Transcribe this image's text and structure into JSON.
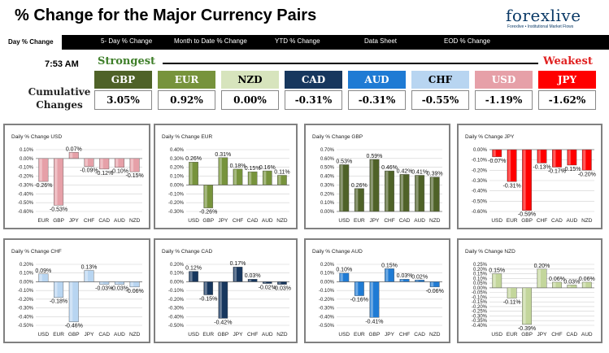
{
  "header": {
    "title": "% Change for the Major Currency Pairs",
    "logo": "forexlive",
    "logo_tagline": "Forexlive • Institutional Market Flows"
  },
  "tabs": [
    {
      "label": "Day % Change",
      "active": true
    },
    {
      "label": "5- Day % Change",
      "active": false
    },
    {
      "label": "Month to Date % Change",
      "active": false
    },
    {
      "label": "YTD % Change",
      "active": false
    },
    {
      "label": "Data Sheet",
      "active": false
    },
    {
      "label": "EOD % Change",
      "active": false
    }
  ],
  "summary": {
    "time": "7:53 AM",
    "strongest_label": "Strongest",
    "weakest_label": "Weakest",
    "cumulative_label_line1": "Cumulative",
    "cumulative_label_line2": "Changes",
    "currencies": [
      {
        "name": "GBP",
        "value": "3.05%",
        "color": "#4f6228",
        "text": "#ffffff"
      },
      {
        "name": "EUR",
        "value": "0.92%",
        "color": "#77933c",
        "text": "#ffffff"
      },
      {
        "name": "NZD",
        "value": "0.00%",
        "color": "#d7e4bd",
        "text": "#000000"
      },
      {
        "name": "CAD",
        "value": "-0.31%",
        "color": "#17375e",
        "text": "#ffffff"
      },
      {
        "name": "AUD",
        "value": "-0.31%",
        "color": "#1f7bd4",
        "text": "#ffffff"
      },
      {
        "name": "CHF",
        "value": "-0.55%",
        "color": "#b8d5f1",
        "text": "#000000"
      },
      {
        "name": "USD",
        "value": "-1.19%",
        "color": "#e6a0a8",
        "text": "#ffffff"
      },
      {
        "name": "JPY",
        "value": "-1.62%",
        "color": "#ff0000",
        "text": "#ffffff"
      }
    ]
  },
  "chart_data": [
    {
      "type": "bar",
      "title": "Daily % Change USD",
      "categories": [
        "EUR",
        "GBP",
        "JPY",
        "CHF",
        "CAD",
        "AUD",
        "NZD"
      ],
      "values": [
        -0.26,
        -0.53,
        0.07,
        -0.09,
        -0.12,
        -0.1,
        -0.15
      ],
      "labels": [
        "-0.26%",
        "-0.53%",
        "0.07%",
        "-0.09%",
        "-0.12%",
        "-0.10%",
        "-0.15%"
      ],
      "ylim": [
        -0.6,
        0.1
      ],
      "ticks": [
        "0.10%",
        "0.00%",
        "-0.10%",
        "-0.20%",
        "-0.30%",
        "-0.40%",
        "-0.50%",
        "-0.60%"
      ],
      "bar_colors": [
        "#e6a0a8",
        "#e6a0a8",
        "#e6a0a8",
        "#e6a0a8",
        "#e6a0a8",
        "#e6a0a8",
        "#e6a0a8"
      ]
    },
    {
      "type": "bar",
      "title": "Daily % Change EUR",
      "categories": [
        "USD",
        "GBP",
        "JPY",
        "CHF",
        "CAD",
        "AUD",
        "NZD"
      ],
      "values": [
        0.26,
        -0.26,
        0.31,
        0.18,
        0.15,
        0.16,
        0.11
      ],
      "labels": [
        "0.26%",
        "-0.26%",
        "0.31%",
        "0.18%",
        "0.15%",
        "0.16%",
        "0.11%"
      ],
      "ylim": [
        -0.3,
        0.4
      ],
      "ticks": [
        "0.40%",
        "0.30%",
        "0.20%",
        "0.10%",
        "0.00%",
        "-0.10%",
        "-0.20%",
        "-0.30%"
      ],
      "bar_colors": [
        "#77933c",
        "#77933c",
        "#77933c",
        "#77933c",
        "#77933c",
        "#77933c",
        "#77933c"
      ]
    },
    {
      "type": "bar",
      "title": "Daily % Change GBP",
      "categories": [
        "USD",
        "EUR",
        "JPY",
        "CHF",
        "CAD",
        "AUD",
        "NZD"
      ],
      "values": [
        0.53,
        0.26,
        0.59,
        0.46,
        0.42,
        0.41,
        0.39
      ],
      "labels": [
        "0.53%",
        "0.26%",
        "0.59%",
        "0.46%",
        "0.42%",
        "0.41%",
        "0.39%"
      ],
      "ylim": [
        0,
        0.7
      ],
      "ticks": [
        "0.70%",
        "0.60%",
        "0.50%",
        "0.40%",
        "0.30%",
        "0.20%",
        "0.10%",
        "0.00%"
      ],
      "bar_colors": [
        "#4f6228",
        "#4f6228",
        "#4f6228",
        "#4f6228",
        "#4f6228",
        "#4f6228",
        "#4f6228"
      ]
    },
    {
      "type": "bar",
      "title": "Daily % Change JPY",
      "categories": [
        "USD",
        "EUR",
        "GBP",
        "CHF",
        "CAD",
        "AUD",
        "NZD"
      ],
      "values": [
        -0.07,
        -0.31,
        -0.59,
        -0.13,
        -0.17,
        -0.15,
        -0.2
      ],
      "labels": [
        "-0.07%",
        "-0.31%",
        "-0.59%",
        "-0.13%",
        "-0.17%",
        "-0.15%",
        "-0.20%"
      ],
      "ylim": [
        -0.6,
        0
      ],
      "ticks": [
        "0.00%",
        "-0.10%",
        "-0.20%",
        "-0.30%",
        "-0.40%",
        "-0.50%",
        "-0.60%"
      ],
      "bar_colors": [
        "#ff0000",
        "#ff0000",
        "#ff0000",
        "#ff0000",
        "#ff0000",
        "#ff0000",
        "#ff0000"
      ]
    },
    {
      "type": "bar",
      "title": "Daily % Change CHF",
      "categories": [
        "USD",
        "EUR",
        "GBP",
        "JPY",
        "CAD",
        "AUD",
        "NZD"
      ],
      "values": [
        0.09,
        -0.18,
        -0.46,
        0.13,
        -0.03,
        -0.03,
        -0.06
      ],
      "labels": [
        "0.09%",
        "-0.18%",
        "-0.46%",
        "0.13%",
        "-0.03%",
        "-0.03%",
        "-0.06%"
      ],
      "ylim": [
        -0.5,
        0.2
      ],
      "ticks": [
        "0.20%",
        "0.10%",
        "0.00%",
        "-0.10%",
        "-0.20%",
        "-0.30%",
        "-0.40%",
        "-0.50%"
      ],
      "bar_colors": [
        "#b8d5f1",
        "#b8d5f1",
        "#b8d5f1",
        "#b8d5f1",
        "#b8d5f1",
        "#b8d5f1",
        "#b8d5f1"
      ]
    },
    {
      "type": "bar",
      "title": "Daily % Change CAD",
      "categories": [
        "USD",
        "EUR",
        "GBP",
        "JPY",
        "CHF",
        "AUD",
        "NZD"
      ],
      "values": [
        0.12,
        -0.15,
        -0.42,
        0.17,
        0.03,
        -0.02,
        -0.03
      ],
      "labels": [
        "0.12%",
        "-0.15%",
        "-0.42%",
        "0.17%",
        "0.03%",
        "-0.02%",
        "-0.03%"
      ],
      "ylim": [
        -0.5,
        0.2
      ],
      "ticks": [
        "0.20%",
        "0.10%",
        "0.00%",
        "-0.10%",
        "-0.20%",
        "-0.30%",
        "-0.40%",
        "-0.50%"
      ],
      "bar_colors": [
        "#17375e",
        "#17375e",
        "#17375e",
        "#17375e",
        "#17375e",
        "#17375e",
        "#17375e"
      ]
    },
    {
      "type": "bar",
      "title": "Daily % Change AUD",
      "categories": [
        "USD",
        "EUR",
        "GBP",
        "JPY",
        "CHF",
        "CAD",
        "NZD"
      ],
      "values": [
        0.1,
        -0.16,
        -0.41,
        0.15,
        0.03,
        0.02,
        -0.06
      ],
      "labels": [
        "0.10%",
        "-0.16%",
        "-0.41%",
        "0.15%",
        "0.03%",
        "0.02%",
        "-0.06%"
      ],
      "ylim": [
        -0.5,
        0.2
      ],
      "ticks": [
        "0.20%",
        "0.10%",
        "0.00%",
        "-0.10%",
        "-0.20%",
        "-0.30%",
        "-0.40%",
        "-0.50%"
      ],
      "bar_colors": [
        "#1f7bd4",
        "#1f7bd4",
        "#1f7bd4",
        "#1f7bd4",
        "#1f7bd4",
        "#1f7bd4",
        "#1f7bd4"
      ]
    },
    {
      "type": "bar",
      "title": "Daily % Change NZD",
      "categories": [
        "USD",
        "EUR",
        "GBP",
        "JPY",
        "CHF",
        "CAD",
        "AUD"
      ],
      "values": [
        0.15,
        -0.11,
        -0.39,
        0.2,
        0.06,
        0.03,
        0.06
      ],
      "labels": [
        "0.15%",
        "-0.11%",
        "-0.39%",
        "0.20%",
        "0.06%",
        "0.03%",
        "0.06%"
      ],
      "ylim": [
        -0.4,
        0.25
      ],
      "ticks": [
        "0.25%",
        "0.20%",
        "0.15%",
        "0.10%",
        "0.05%",
        "0.00%",
        "-0.05%",
        "-0.10%",
        "-0.15%",
        "-0.20%",
        "-0.25%",
        "-0.30%",
        "-0.35%",
        "-0.40%"
      ],
      "bar_colors": [
        "#c3d69b",
        "#c3d69b",
        "#c3d69b",
        "#c3d69b",
        "#c3d69b",
        "#c3d69b",
        "#c3d69b"
      ]
    }
  ]
}
